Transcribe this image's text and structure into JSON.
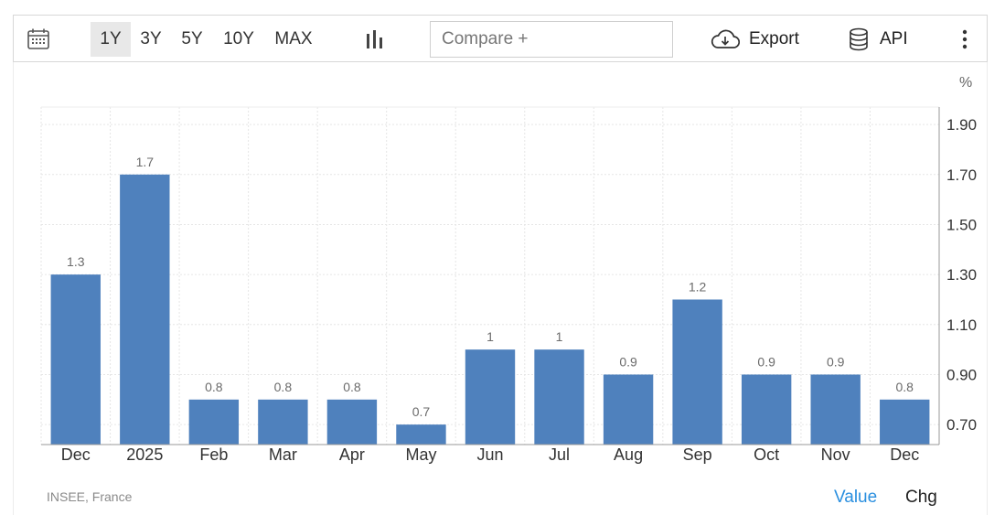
{
  "toolbar": {
    "ranges": [
      "1Y",
      "3Y",
      "5Y",
      "10Y",
      "MAX"
    ],
    "active_range": "1Y",
    "compare_placeholder": "Compare +",
    "export_label": "Export",
    "api_label": "API",
    "icons": {
      "calendar": "calendar-icon",
      "chart_type": "bar-chart-icon",
      "export": "cloud-download-icon",
      "api": "database-icon",
      "more": "more-vertical-icon"
    }
  },
  "source": "INSEE, France",
  "tabs": {
    "value": "Value",
    "chg": "Chg"
  },
  "colors": {
    "bar": "#4f81bd",
    "accent": "#2a8fdf",
    "grid": "#e6e6e6"
  },
  "chart_data": {
    "type": "bar",
    "unit": "%",
    "categories": [
      "Dec",
      "2025",
      "Feb",
      "Mar",
      "Apr",
      "May",
      "Jun",
      "Jul",
      "Aug",
      "Sep",
      "Oct",
      "Nov",
      "Dec"
    ],
    "values": [
      1.3,
      1.7,
      0.8,
      0.8,
      0.8,
      0.7,
      1,
      1,
      0.9,
      1.2,
      0.9,
      0.9,
      0.8
    ],
    "data_labels": [
      "1.3",
      "1.7",
      "0.8",
      "0.8",
      "0.8",
      "0.7",
      "1",
      "1",
      "0.9",
      "1.2",
      "0.9",
      "0.9",
      "0.8"
    ],
    "y_ticks": [
      0.7,
      0.9,
      1.1,
      1.3,
      1.5,
      1.7,
      1.9
    ],
    "y_tick_labels": [
      "0.70",
      "0.90",
      "1.10",
      "1.30",
      "1.50",
      "1.70",
      "1.90"
    ],
    "ylim": [
      0.62,
      1.97
    ],
    "y_axis_position": "right",
    "grid": true,
    "legend": "none"
  }
}
